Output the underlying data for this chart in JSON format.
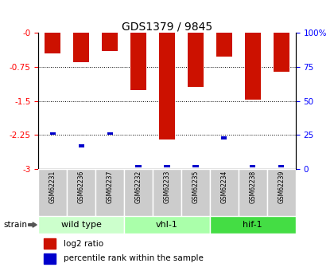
{
  "title": "GDS1379 / 9845",
  "samples": [
    "GSM62231",
    "GSM62236",
    "GSM62237",
    "GSM62232",
    "GSM62233",
    "GSM62235",
    "GSM62234",
    "GSM62238",
    "GSM62239"
  ],
  "log2_ratio": [
    -0.45,
    -0.65,
    -0.4,
    -1.25,
    -2.35,
    -1.18,
    -0.52,
    -1.47,
    -0.85
  ],
  "percentile_rank": [
    26,
    17,
    26,
    2,
    2,
    2,
    23,
    2,
    2
  ],
  "groups": [
    {
      "label": "wild type",
      "indices": [
        0,
        1,
        2
      ],
      "color": "#ccffcc"
    },
    {
      "label": "vhl-1",
      "indices": [
        3,
        4,
        5
      ],
      "color": "#aaffaa"
    },
    {
      "label": "hif-1",
      "indices": [
        6,
        7,
        8
      ],
      "color": "#44dd44"
    }
  ],
  "bar_color_red": "#cc1100",
  "bar_color_blue": "#0000cc",
  "ylim_left": [
    -3,
    0
  ],
  "ylim_right": [
    0,
    100
  ],
  "yticks_left": [
    0,
    -0.75,
    -1.5,
    -2.25,
    -3
  ],
  "yticks_right": [
    0,
    25,
    50,
    75,
    100
  ],
  "bar_width": 0.55,
  "blue_bar_width": 0.2,
  "legend_red_label": "log2 ratio",
  "legend_blue_label": "percentile rank within the sample"
}
